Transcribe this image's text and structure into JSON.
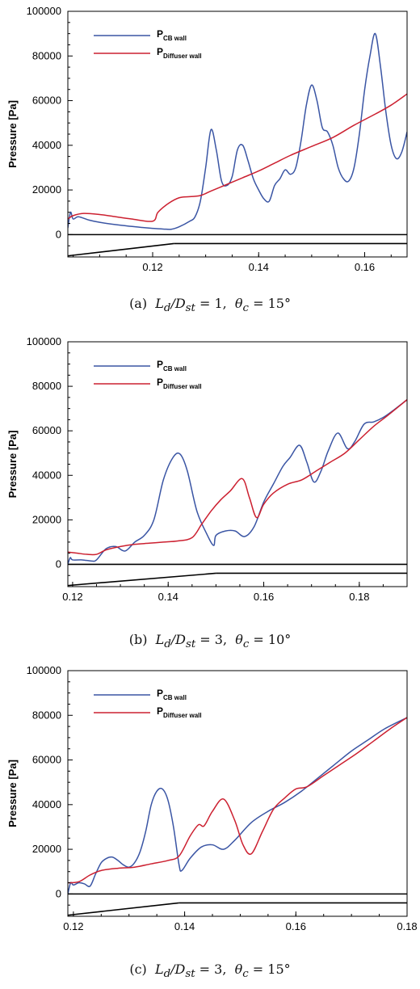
{
  "chart_data": [
    {
      "type": "line",
      "panel_label": "(a)",
      "caption_vars": {
        "L": "L",
        "Lsub": "d",
        "D": "D",
        "Dsub": "st",
        "theta": "θ",
        "thetasub": "c"
      },
      "caption_values": {
        "ratio": "1",
        "angle": "15°"
      },
      "ylabel": "Pressure [Pa]",
      "xlim": [
        0.104,
        0.168
      ],
      "ylim": [
        -10000,
        100000
      ],
      "xticks": [
        0.12,
        0.14,
        0.16
      ],
      "yticks": [
        0,
        20000,
        40000,
        60000,
        80000,
        100000
      ],
      "legend": {
        "position": "top-left",
        "entries": [
          {
            "main": "P",
            "sub": "CB wall",
            "color": "#3a55a4"
          },
          {
            "main": "P",
            "sub": "Diffuser wall",
            "color": "#cc2030"
          }
        ]
      },
      "series": [
        {
          "color": "#3a55a4",
          "x": [
            0.104,
            0.1045,
            0.105,
            0.106,
            0.108,
            0.11,
            0.114,
            0.118,
            0.12,
            0.122,
            0.1235,
            0.125,
            0.127,
            0.128,
            0.129,
            0.13,
            0.131,
            0.132,
            0.133,
            0.134,
            0.135,
            0.136,
            0.137,
            0.138,
            0.139,
            0.14,
            0.141,
            0.142,
            0.143,
            0.144,
            0.145,
            0.146,
            0.147,
            0.148,
            0.149,
            0.15,
            0.151,
            0.152,
            0.153,
            0.154,
            0.155,
            0.156,
            0.157,
            0.158,
            0.159,
            0.16,
            0.161,
            0.162,
            0.163,
            0.164,
            0.165,
            0.166,
            0.167,
            0.168
          ],
          "y": [
            3000,
            10000,
            7000,
            8000,
            6500,
            5500,
            4200,
            3200,
            2800,
            2500,
            2400,
            3500,
            6000,
            8000,
            15000,
            30000,
            47000,
            38000,
            24000,
            22000,
            26000,
            38000,
            40000,
            33000,
            25000,
            20000,
            16000,
            15000,
            22000,
            25000,
            29000,
            27000,
            30000,
            42000,
            58000,
            67000,
            60000,
            48000,
            46000,
            40000,
            30000,
            25000,
            24000,
            30000,
            45000,
            65000,
            80000,
            90000,
            75000,
            55000,
            40000,
            34000,
            37000,
            46000
          ]
        },
        {
          "color": "#cc2030",
          "x": [
            0.104,
            0.105,
            0.107,
            0.11,
            0.113,
            0.116,
            0.12,
            0.121,
            0.123,
            0.125,
            0.127,
            0.129,
            0.131,
            0.134,
            0.137,
            0.14,
            0.143,
            0.146,
            0.15,
            0.154,
            0.158,
            0.162,
            0.165,
            0.168
          ],
          "y": [
            7000,
            8500,
            9500,
            9000,
            8000,
            7000,
            6000,
            10000,
            14000,
            16500,
            17000,
            17500,
            19500,
            22500,
            25500,
            28500,
            32000,
            35500,
            39500,
            43500,
            49000,
            54000,
            58000,
            63000
          ]
        }
      ]
    },
    {
      "type": "line",
      "panel_label": "(b)",
      "caption_vars": {
        "L": "L",
        "Lsub": "d",
        "D": "D",
        "Dsub": "st",
        "theta": "θ",
        "thetasub": "c"
      },
      "caption_values": {
        "ratio": "3",
        "angle": "10°"
      },
      "ylabel": "Pressure [Pa]",
      "xlim": [
        0.119,
        0.19
      ],
      "ylim": [
        -10000,
        100000
      ],
      "xticks": [
        0.12,
        0.14,
        0.16,
        0.18
      ],
      "yticks": [
        0,
        20000,
        40000,
        60000,
        80000,
        100000
      ],
      "legend": {
        "position": "top-left",
        "entries": [
          {
            "main": "P",
            "sub": "CB wall",
            "color": "#3a55a4"
          },
          {
            "main": "P",
            "sub": "Diffuser wall",
            "color": "#cc2030"
          }
        ]
      },
      "series": [
        {
          "color": "#3a55a4",
          "x": [
            0.119,
            0.1195,
            0.12,
            0.122,
            0.124,
            0.125,
            0.127,
            0.129,
            0.131,
            0.133,
            0.135,
            0.137,
            0.139,
            0.141,
            0.1425,
            0.144,
            0.146,
            0.148,
            0.1495,
            0.15,
            0.152,
            0.154,
            0.156,
            0.158,
            0.16,
            0.162,
            0.164,
            0.1655,
            0.1675,
            0.169,
            0.1705,
            0.172,
            0.1735,
            0.1755,
            0.1775,
            0.179,
            0.181,
            0.183,
            0.185,
            0.187,
            0.19
          ],
          "y": [
            0,
            3000,
            2000,
            2000,
            1500,
            2000,
            7000,
            8000,
            6000,
            10000,
            13000,
            20000,
            38000,
            48000,
            49500,
            42000,
            24000,
            14000,
            8500,
            13000,
            15000,
            15000,
            12500,
            17000,
            28000,
            36000,
            44000,
            48000,
            53500,
            46000,
            37000,
            42000,
            51000,
            59000,
            52000,
            55000,
            63000,
            64000,
            66000,
            69000,
            74000
          ]
        },
        {
          "color": "#cc2030",
          "x": [
            0.119,
            0.121,
            0.123,
            0.125,
            0.127,
            0.13,
            0.133,
            0.136,
            0.139,
            0.142,
            0.145,
            0.147,
            0.149,
            0.151,
            0.153,
            0.1555,
            0.157,
            0.1585,
            0.16,
            0.162,
            0.165,
            0.168,
            0.171,
            0.174,
            0.177,
            0.18,
            0.183,
            0.186,
            0.19
          ],
          "y": [
            5500,
            5000,
            4500,
            4500,
            6500,
            8000,
            9000,
            9500,
            10000,
            10500,
            12000,
            18000,
            24000,
            29000,
            33000,
            38500,
            30000,
            21000,
            27000,
            32000,
            36000,
            38000,
            42000,
            46000,
            50000,
            56000,
            62000,
            67000,
            74000
          ]
        }
      ]
    },
    {
      "type": "line",
      "panel_label": "(c)",
      "caption_vars": {
        "L": "L",
        "Lsub": "d",
        "D": "D",
        "Dsub": "st",
        "theta": "θ",
        "thetasub": "c"
      },
      "caption_values": {
        "ratio": "3",
        "angle": "15°"
      },
      "ylabel": "Pressure [Pa]",
      "xlim": [
        0.119,
        0.18
      ],
      "ylim": [
        -10000,
        100000
      ],
      "xticks": [
        0.12,
        0.14,
        0.16,
        0.18
      ],
      "yticks": [
        0,
        20000,
        40000,
        60000,
        80000,
        100000
      ],
      "legend": {
        "position": "top-left",
        "entries": [
          {
            "main": "P",
            "sub": "CB wall",
            "color": "#3a55a4"
          },
          {
            "main": "P",
            "sub": "Diffuser wall",
            "color": "#cc2030"
          }
        ]
      },
      "series": [
        {
          "color": "#3a55a4",
          "x": [
            0.119,
            0.1195,
            0.12,
            0.121,
            0.122,
            0.123,
            0.124,
            0.125,
            0.126,
            0.127,
            0.128,
            0.129,
            0.13,
            0.131,
            0.132,
            0.133,
            0.134,
            0.135,
            0.136,
            0.137,
            0.138,
            0.139,
            0.1395,
            0.141,
            0.143,
            0.145,
            0.147,
            0.149,
            0.152,
            0.155,
            0.158,
            0.161,
            0.164,
            0.167,
            0.17,
            0.173,
            0.176,
            0.18
          ],
          "y": [
            0,
            5000,
            4000,
            5000,
            4500,
            3500,
            9000,
            14000,
            16000,
            16500,
            15000,
            13000,
            12000,
            14000,
            19000,
            28000,
            40000,
            46000,
            47000,
            42000,
            30000,
            13000,
            10500,
            16000,
            21000,
            22000,
            20000,
            24000,
            32000,
            37000,
            41000,
            46000,
            52000,
            58000,
            64000,
            69000,
            74000,
            79000
          ]
        },
        {
          "color": "#cc2030",
          "x": [
            0.119,
            0.121,
            0.123,
            0.125,
            0.128,
            0.131,
            0.134,
            0.137,
            0.139,
            0.141,
            0.1425,
            0.1435,
            0.145,
            0.147,
            0.149,
            0.1505,
            0.152,
            0.154,
            0.156,
            0.158,
            0.16,
            0.162,
            0.165,
            0.168,
            0.171,
            0.174,
            0.177,
            0.18
          ],
          "y": [
            5000,
            5500,
            8500,
            10500,
            11500,
            12000,
            13500,
            15000,
            17000,
            26000,
            31000,
            30500,
            37000,
            42500,
            33000,
            22000,
            18000,
            28000,
            38000,
            43000,
            47000,
            48000,
            53000,
            58000,
            63000,
            68500,
            74000,
            79000
          ]
        }
      ]
    }
  ]
}
